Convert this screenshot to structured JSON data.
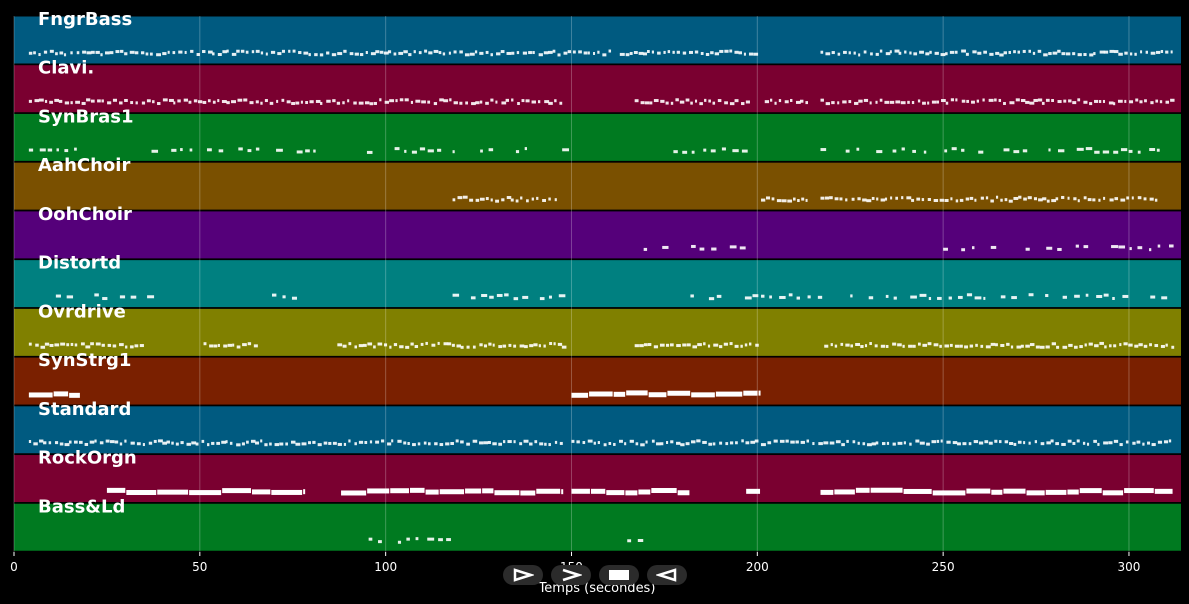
{
  "chart_data": {
    "type": "piano-roll",
    "xlabel": "Temps (secondes)",
    "xlim": [
      0,
      314
    ],
    "xticks": [
      0,
      50,
      100,
      150,
      200,
      250,
      300
    ],
    "tracks": [
      {
        "name": "FngrBass",
        "color": "#005a80",
        "segments": [
          [
            4,
            160
          ],
          [
            163,
            200
          ],
          [
            217,
            312
          ]
        ],
        "style": "dense"
      },
      {
        "name": "Clavi.",
        "color": "#7a0030",
        "segments": [
          [
            4,
            148
          ],
          [
            167,
            197
          ],
          [
            202,
            214
          ],
          [
            217,
            312
          ]
        ],
        "style": "dense"
      },
      {
        "name": "SynBras1",
        "color": "#007a20",
        "segments": [
          [
            4,
            18
          ],
          [
            37,
            117
          ],
          [
            118,
            148
          ],
          [
            175,
            198
          ],
          [
            217,
            312
          ]
        ],
        "style": "sparse"
      },
      {
        "name": "AahChoir",
        "color": "#7a5000",
        "segments": [
          [
            118,
            146
          ],
          [
            201,
            214
          ],
          [
            217,
            308
          ]
        ],
        "style": "dense"
      },
      {
        "name": "OohChoir",
        "color": "#55007a",
        "segments": [
          [
            167,
            197
          ],
          [
            250,
            312
          ]
        ],
        "style": "sparse"
      },
      {
        "name": "Distortd",
        "color": "#008080",
        "segments": [
          [
            4,
            38
          ],
          [
            67,
            78
          ],
          [
            118,
            147
          ],
          [
            182,
            200
          ],
          [
            201,
            218
          ],
          [
            225,
            309
          ]
        ],
        "style": "sparse"
      },
      {
        "name": "Ovrdrive",
        "color": "#808000",
        "segments": [
          [
            4,
            35
          ],
          [
            51,
            66
          ],
          [
            87,
            148
          ],
          [
            167,
            200
          ],
          [
            218,
            312
          ]
        ],
        "style": "dense"
      },
      {
        "name": "SynStrg1",
        "color": "#7a2000",
        "segments": [
          [
            4,
            18
          ],
          [
            150,
            201
          ]
        ],
        "style": "block"
      },
      {
        "name": "Standard",
        "color": "#005a80",
        "segments": [
          [
            4,
            148
          ],
          [
            150,
            312
          ]
        ],
        "style": "dense"
      },
      {
        "name": "RockOrgn",
        "color": "#7a0030",
        "segments": [
          [
            25,
            78
          ],
          [
            88,
            148
          ],
          [
            150,
            182
          ],
          [
            197,
            201
          ],
          [
            217,
            312
          ]
        ],
        "style": "block"
      },
      {
        "name": "Bass&Ld",
        "color": "#007a20",
        "segments": [
          [
            93,
            118
          ],
          [
            165,
            168
          ]
        ],
        "style": "sparse"
      }
    ]
  },
  "controls": {
    "play_icon": "play-outline-icon",
    "forward_icon": "forward-icon",
    "stop_icon": "stop-icon",
    "rewind_icon": "rewind-icon"
  }
}
